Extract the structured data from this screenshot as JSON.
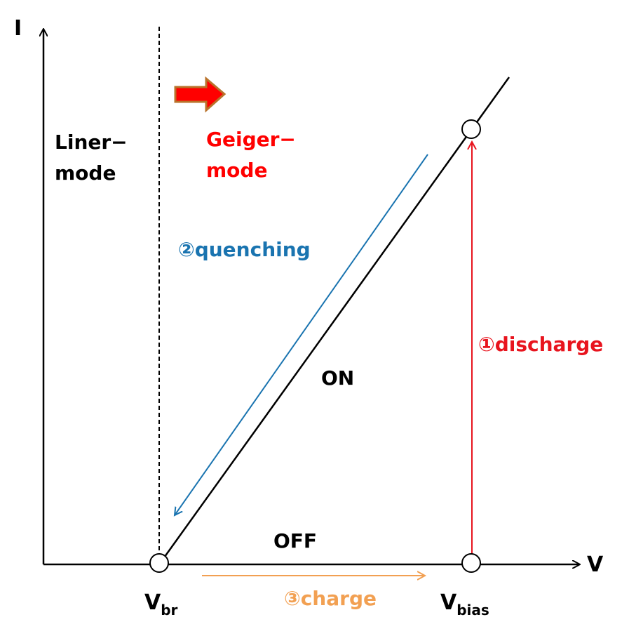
{
  "axes": {
    "y_label": "I",
    "x_label": "V"
  },
  "regions": {
    "linear_line1": "Liner−",
    "linear_line2": "mode",
    "geiger_line1": "Geiger−",
    "geiger_line2": "mode"
  },
  "curve_labels": {
    "on": "ON",
    "off": "OFF"
  },
  "points": {
    "vbr_main": "V",
    "vbr_sub": "br",
    "vbias_main": "V",
    "vbias_sub": "bias"
  },
  "steps": {
    "discharge": "①discharge",
    "quenching": "②quenching",
    "charge": "③charge"
  },
  "colors": {
    "axis": "#000000",
    "discharge": "#e8141e",
    "quenching": "#1a74b0",
    "charge": "#f2a052",
    "geiger_arrow_fill": "#ff0000",
    "geiger_arrow_stroke": "#b9722a"
  }
}
